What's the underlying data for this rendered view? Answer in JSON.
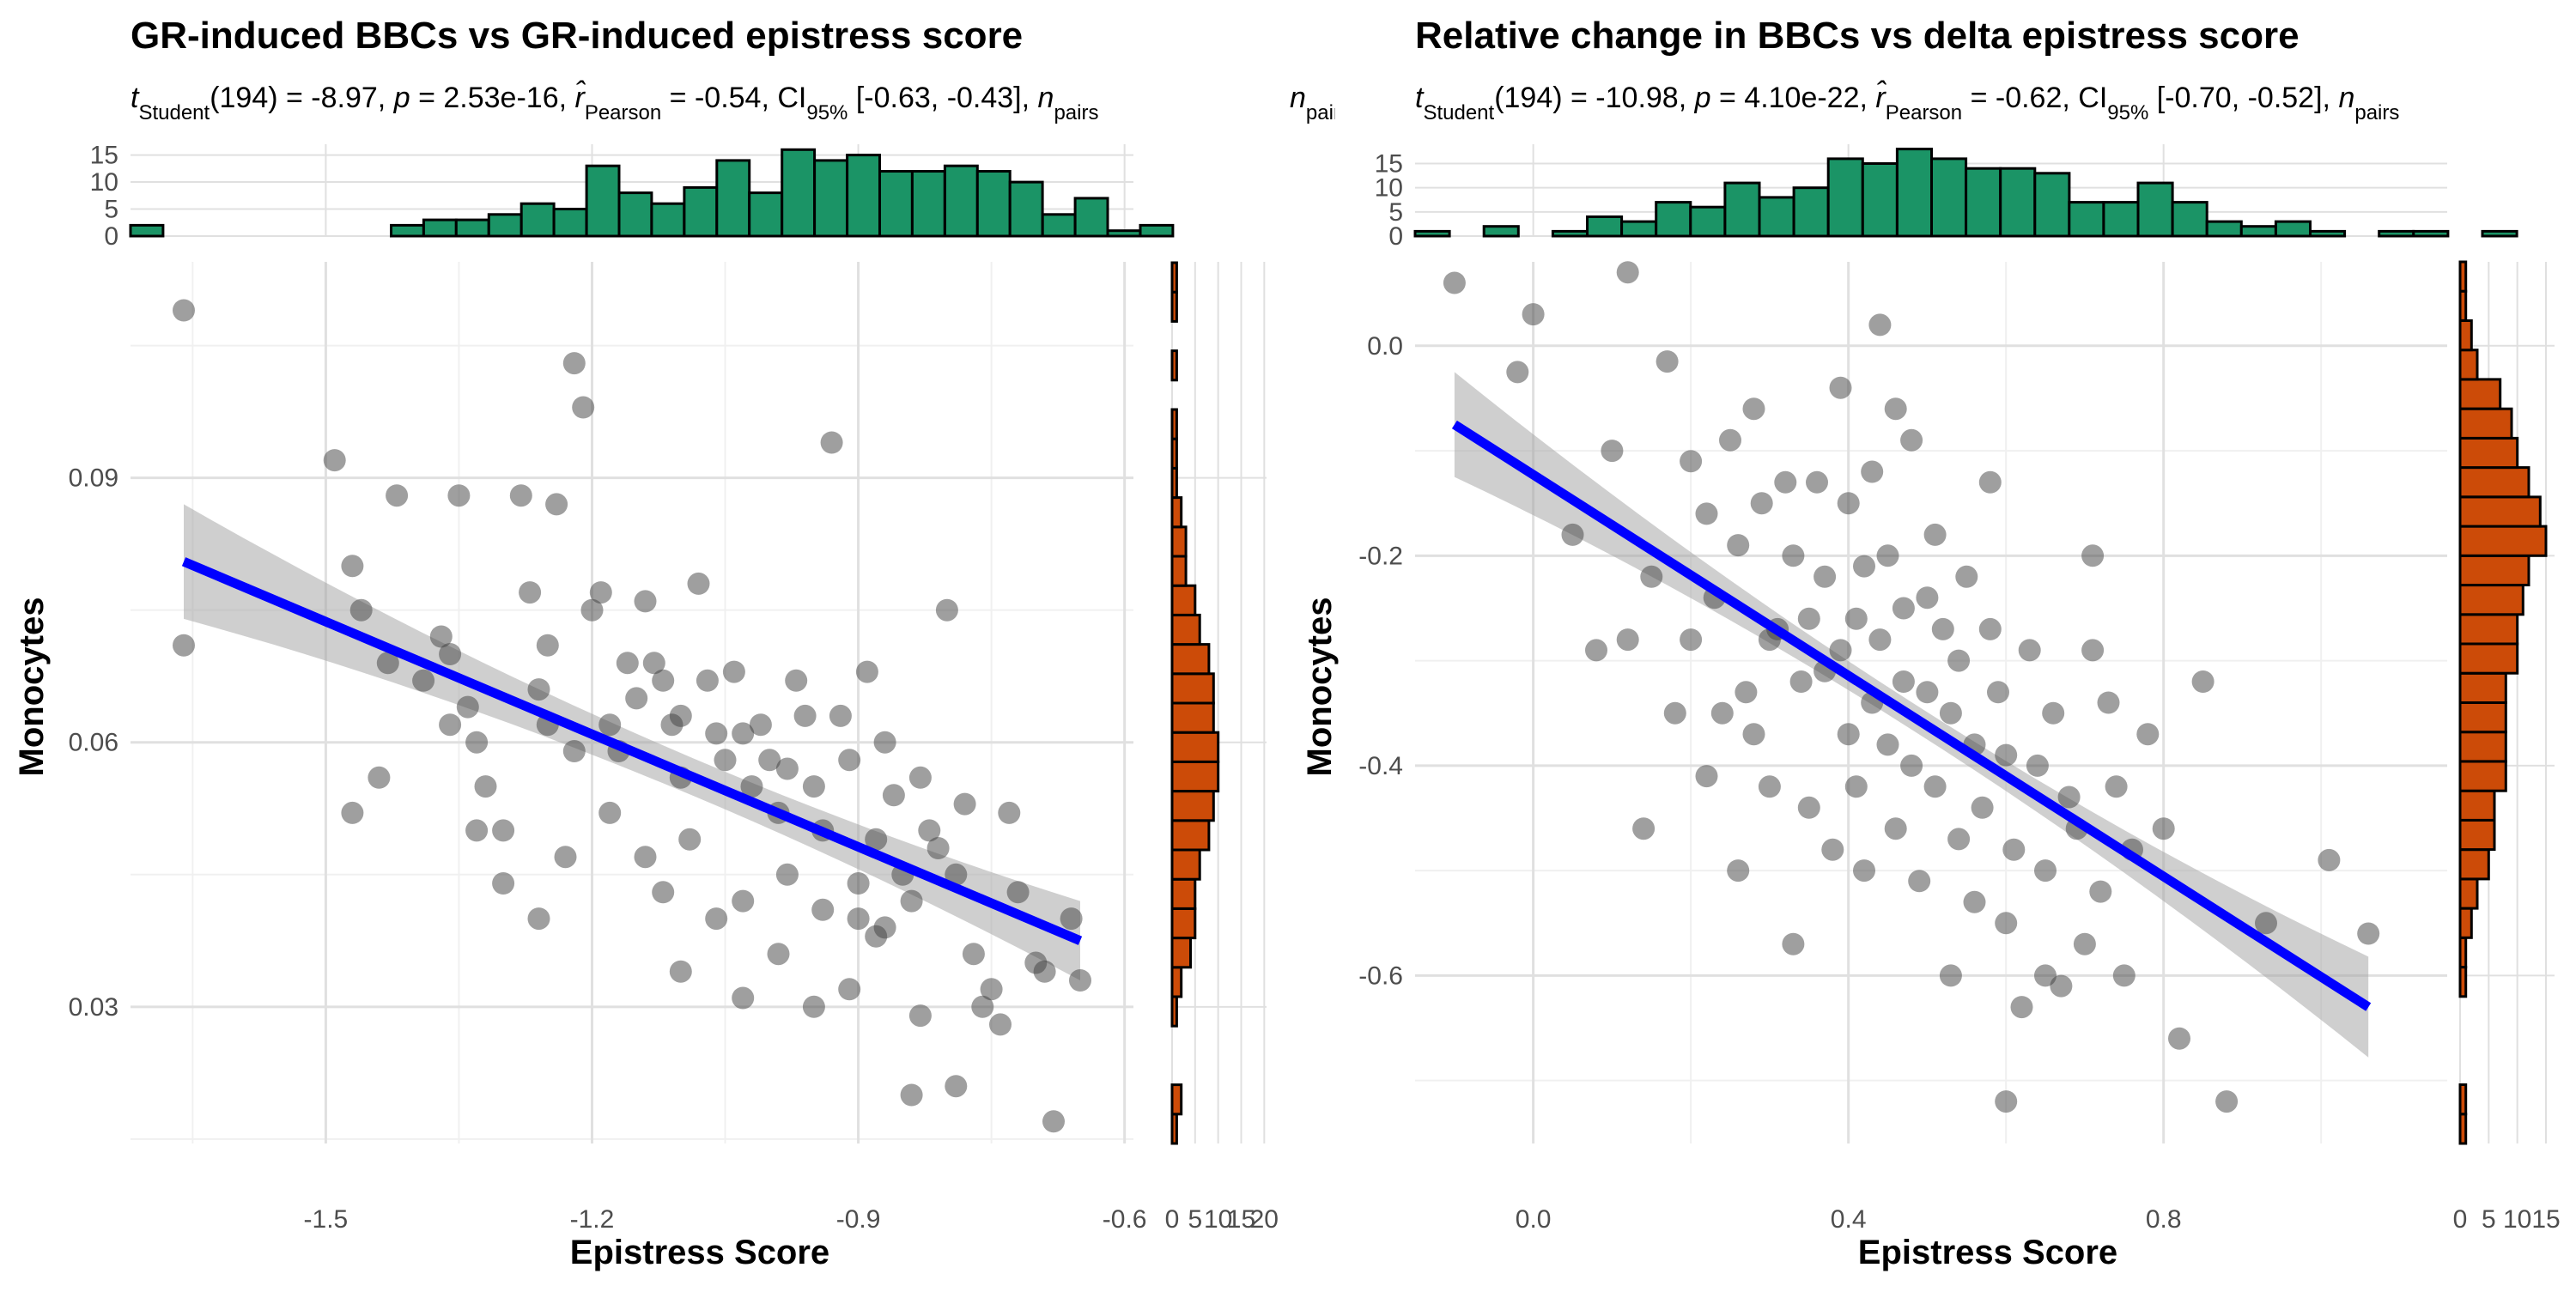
{
  "chart_data": [
    {
      "type": "scatter",
      "title": "GR-induced BBCs vs GR-induced epistress score",
      "subtitle": {
        "t_sub": "Student",
        "t_val": "(194) = -8.97, ",
        "p_val": " = 2.53e-16, ",
        "r_sub": "Pearson",
        "r_val": " = -0.54, CI",
        "ci_sub": "95%",
        "ci_val": " [-0.63, -0.43], ",
        "n_sub": "pairs"
      },
      "xlabel": "Epistress Score",
      "ylabel": "Monocytes",
      "xlim": [
        -1.72,
        -0.59
      ],
      "ylim": [
        0.0145,
        0.1145
      ],
      "xticks": [
        -1.5,
        -1.2,
        -0.9,
        -0.6
      ],
      "xtick_labels": [
        "-1.5",
        "-1.2",
        "-0.9",
        "-0.6"
      ],
      "yticks": [
        0.03,
        0.06,
        0.09
      ],
      "ytick_labels": [
        "0.03",
        "0.06",
        "0.09"
      ],
      "fit": {
        "x1": -1.66,
        "y1": 0.0805,
        "x2": -0.65,
        "y2": 0.0375,
        "ci_start": 0.0065,
        "ci_mid": 0.0022,
        "ci_end": 0.0045
      },
      "points": [
        [
          -1.66,
          0.109
        ],
        [
          -1.66,
          0.071
        ],
        [
          -1.49,
          0.092
        ],
        [
          -1.47,
          0.08
        ],
        [
          -1.46,
          0.075
        ],
        [
          -1.43,
          0.069
        ],
        [
          -1.42,
          0.088
        ],
        [
          -1.39,
          0.067
        ],
        [
          -1.37,
          0.072
        ],
        [
          -1.36,
          0.062
        ],
        [
          -1.36,
          0.07
        ],
        [
          -1.35,
          0.088
        ],
        [
          -1.34,
          0.064
        ],
        [
          -1.33,
          0.06
        ],
        [
          -1.32,
          0.055
        ],
        [
          -1.3,
          0.05
        ],
        [
          -1.28,
          0.088
        ],
        [
          -1.27,
          0.077
        ],
        [
          -1.26,
          0.066
        ],
        [
          -1.25,
          0.071
        ],
        [
          -1.25,
          0.062
        ],
        [
          -1.24,
          0.087
        ],
        [
          -1.22,
          0.103
        ],
        [
          -1.22,
          0.059
        ],
        [
          -1.21,
          0.098
        ],
        [
          -1.2,
          0.075
        ],
        [
          -1.19,
          0.077
        ],
        [
          -1.18,
          0.062
        ],
        [
          -1.17,
          0.059
        ],
        [
          -1.16,
          0.069
        ],
        [
          -1.15,
          0.065
        ],
        [
          -1.14,
          0.076
        ],
        [
          -1.13,
          0.069
        ],
        [
          -1.12,
          0.067
        ],
        [
          -1.11,
          0.062
        ],
        [
          -1.1,
          0.063
        ],
        [
          -1.1,
          0.056
        ],
        [
          -1.09,
          0.049
        ],
        [
          -1.08,
          0.078
        ],
        [
          -1.07,
          0.067
        ],
        [
          -1.06,
          0.061
        ],
        [
          -1.05,
          0.058
        ],
        [
          -1.04,
          0.068
        ],
        [
          -1.03,
          0.061
        ],
        [
          -1.02,
          0.055
        ],
        [
          -1.01,
          0.062
        ],
        [
          -1.0,
          0.058
        ],
        [
          -0.99,
          0.052
        ],
        [
          -0.98,
          0.057
        ],
        [
          -0.97,
          0.067
        ],
        [
          -0.96,
          0.063
        ],
        [
          -0.95,
          0.055
        ],
        [
          -0.94,
          0.05
        ],
        [
          -0.93,
          0.094
        ],
        [
          -0.92,
          0.063
        ],
        [
          -0.91,
          0.058
        ],
        [
          -0.9,
          0.044
        ],
        [
          -0.89,
          0.068
        ],
        [
          -0.88,
          0.049
        ],
        [
          -0.87,
          0.06
        ],
        [
          -0.86,
          0.054
        ],
        [
          -0.85,
          0.045
        ],
        [
          -0.84,
          0.042
        ],
        [
          -0.83,
          0.056
        ],
        [
          -0.82,
          0.05
        ],
        [
          -0.81,
          0.048
        ],
        [
          -0.8,
          0.075
        ],
        [
          -0.79,
          0.045
        ],
        [
          -0.78,
          0.053
        ],
        [
          -0.77,
          0.036
        ],
        [
          -0.76,
          0.03
        ],
        [
          -0.75,
          0.032
        ],
        [
          -0.74,
          0.028
        ],
        [
          -0.73,
          0.052
        ],
        [
          -0.72,
          0.043
        ],
        [
          -0.7,
          0.035
        ],
        [
          -0.69,
          0.034
        ],
        [
          -0.68,
          0.017
        ],
        [
          -0.66,
          0.04
        ],
        [
          -0.65,
          0.033
        ],
        [
          -1.44,
          0.056
        ],
        [
          -1.3,
          0.044
        ],
        [
          -1.26,
          0.04
        ],
        [
          -1.14,
          0.047
        ],
        [
          -1.1,
          0.034
        ],
        [
          -1.03,
          0.042
        ],
        [
          -0.98,
          0.045
        ],
        [
          -0.94,
          0.041
        ],
        [
          -0.91,
          0.032
        ],
        [
          -0.87,
          0.039
        ],
        [
          -0.84,
          0.02
        ],
        [
          -0.79,
          0.021
        ],
        [
          -1.03,
          0.031
        ],
        [
          -0.95,
          0.03
        ],
        [
          -0.88,
          0.038
        ],
        [
          -0.83,
          0.029
        ],
        [
          -1.47,
          0.052
        ],
        [
          -1.33,
          0.05
        ],
        [
          -1.23,
          0.047
        ],
        [
          -1.18,
          0.052
        ],
        [
          -1.12,
          0.043
        ],
        [
          -1.06,
          0.04
        ],
        [
          -0.99,
          0.036
        ],
        [
          -0.9,
          0.04
        ]
      ],
      "top_hist": {
        "x0": -1.72,
        "bin_w": 0.0367,
        "counts": [
          2,
          0,
          0,
          0,
          0,
          0,
          0,
          0,
          2,
          3,
          3,
          4,
          6,
          5,
          13,
          8,
          6,
          9,
          14,
          8,
          16,
          14,
          15,
          12,
          12,
          13,
          12,
          10,
          4,
          7,
          1,
          2
        ],
        "yticks": [
          0,
          5,
          10,
          15
        ],
        "ytick_labels": [
          "0",
          "5",
          "10",
          "15"
        ],
        "ymax": 17,
        "color": "#1b9466"
      },
      "right_hist": {
        "y0": 0.0145,
        "bin_h": 0.00333,
        "counts": [
          1,
          2,
          0,
          0,
          1,
          2,
          4,
          5,
          5,
          6,
          8,
          9,
          10,
          10,
          9,
          9,
          8,
          6,
          5,
          3,
          3,
          2,
          1,
          1,
          1,
          0,
          1,
          0,
          1,
          1
        ],
        "xticks": [
          0,
          5,
          10,
          15,
          20
        ],
        "xtick_labels": [
          "0",
          "5",
          "10",
          "15",
          "20"
        ],
        "xmax": 20.5,
        "color": "#cc4b08"
      },
      "colors": {
        "point": "#404040",
        "line": "#0000ff",
        "ribbon": "#a0a0a0"
      }
    },
    {
      "type": "scatter",
      "title": "Relative change in BBCs vs delta epistress score",
      "subtitle": {
        "t_sub": "Student",
        "t_val": "(194) = -10.98, ",
        "p_val": " = 4.10e-22, ",
        "r_sub": "Pearson",
        "r_val": " = -0.62, CI",
        "ci_sub": "95%",
        "ci_val": " [-0.70, -0.52], ",
        "n_sub": "pairs"
      },
      "xlabel": "Epistress Score",
      "ylabel": "Monocytes",
      "xlim": [
        -0.15,
        1.16
      ],
      "ylim": [
        -0.76,
        0.08
      ],
      "xticks": [
        0.0,
        0.4,
        0.8
      ],
      "xtick_labels": [
        "0.0",
        "0.4",
        "0.8"
      ],
      "yticks": [
        -0.6,
        -0.4,
        -0.2,
        0.0
      ],
      "ytick_labels": [
        "-0.6",
        "-0.4",
        "-0.2",
        "0.0"
      ],
      "fit": {
        "x1": -0.1,
        "y1": -0.075,
        "x2": 1.06,
        "y2": -0.63,
        "ci_start": 0.05,
        "ci_mid": 0.013,
        "ci_end": 0.048
      },
      "points": [
        [
          -0.1,
          0.06
        ],
        [
          -0.02,
          -0.025
        ],
        [
          0.0,
          0.03
        ],
        [
          0.05,
          -0.18
        ],
        [
          0.1,
          -0.1
        ],
        [
          0.12,
          0.07
        ],
        [
          0.15,
          -0.22
        ],
        [
          0.17,
          -0.015
        ],
        [
          0.18,
          -0.35
        ],
        [
          0.2,
          -0.11
        ],
        [
          0.2,
          -0.28
        ],
        [
          0.22,
          -0.16
        ],
        [
          0.23,
          -0.24
        ],
        [
          0.24,
          -0.35
        ],
        [
          0.25,
          -0.09
        ],
        [
          0.26,
          -0.19
        ],
        [
          0.27,
          -0.33
        ],
        [
          0.28,
          -0.06
        ],
        [
          0.28,
          -0.37
        ],
        [
          0.29,
          -0.15
        ],
        [
          0.3,
          -0.28
        ],
        [
          0.3,
          -0.42
        ],
        [
          0.31,
          -0.27
        ],
        [
          0.32,
          -0.13
        ],
        [
          0.33,
          -0.2
        ],
        [
          0.34,
          -0.32
        ],
        [
          0.35,
          -0.26
        ],
        [
          0.35,
          -0.44
        ],
        [
          0.36,
          -0.13
        ],
        [
          0.37,
          -0.22
        ],
        [
          0.37,
          -0.31
        ],
        [
          0.38,
          -0.48
        ],
        [
          0.39,
          -0.04
        ],
        [
          0.39,
          -0.29
        ],
        [
          0.4,
          -0.15
        ],
        [
          0.4,
          -0.37
        ],
        [
          0.41,
          -0.26
        ],
        [
          0.41,
          -0.42
        ],
        [
          0.42,
          -0.21
        ],
        [
          0.42,
          -0.5
        ],
        [
          0.43,
          -0.12
        ],
        [
          0.43,
          -0.34
        ],
        [
          0.44,
          0.02
        ],
        [
          0.44,
          -0.28
        ],
        [
          0.45,
          -0.2
        ],
        [
          0.45,
          -0.38
        ],
        [
          0.46,
          -0.06
        ],
        [
          0.46,
          -0.46
        ],
        [
          0.47,
          -0.25
        ],
        [
          0.47,
          -0.32
        ],
        [
          0.48,
          -0.09
        ],
        [
          0.48,
          -0.4
        ],
        [
          0.49,
          -0.51
        ],
        [
          0.5,
          -0.24
        ],
        [
          0.5,
          -0.33
        ],
        [
          0.51,
          -0.18
        ],
        [
          0.51,
          -0.42
        ],
        [
          0.52,
          -0.27
        ],
        [
          0.53,
          -0.35
        ],
        [
          0.53,
          -0.6
        ],
        [
          0.54,
          -0.3
        ],
        [
          0.54,
          -0.47
        ],
        [
          0.55,
          -0.22
        ],
        [
          0.56,
          -0.38
        ],
        [
          0.56,
          -0.53
        ],
        [
          0.57,
          -0.44
        ],
        [
          0.58,
          -0.27
        ],
        [
          0.58,
          -0.13
        ],
        [
          0.59,
          -0.33
        ],
        [
          0.6,
          -0.55
        ],
        [
          0.6,
          -0.39
        ],
        [
          0.61,
          -0.48
        ],
        [
          0.62,
          -0.63
        ],
        [
          0.63,
          -0.29
        ],
        [
          0.64,
          -0.4
        ],
        [
          0.65,
          -0.5
        ],
        [
          0.66,
          -0.35
        ],
        [
          0.67,
          -0.61
        ],
        [
          0.68,
          -0.43
        ],
        [
          0.69,
          -0.46
        ],
        [
          0.7,
          -0.57
        ],
        [
          0.71,
          -0.29
        ],
        [
          0.71,
          -0.2
        ],
        [
          0.72,
          -0.52
        ],
        [
          0.73,
          -0.34
        ],
        [
          0.74,
          -0.42
        ],
        [
          0.75,
          -0.6
        ],
        [
          0.76,
          -0.48
        ],
        [
          0.78,
          -0.37
        ],
        [
          0.8,
          -0.46
        ],
        [
          0.82,
          -0.66
        ],
        [
          0.85,
          -0.32
        ],
        [
          0.88,
          -0.72
        ],
        [
          0.93,
          -0.55
        ],
        [
          1.01,
          -0.49
        ],
        [
          1.06,
          -0.56
        ],
        [
          0.12,
          -0.28
        ],
        [
          0.08,
          -0.29
        ],
        [
          0.14,
          -0.46
        ],
        [
          0.22,
          -0.41
        ],
        [
          0.26,
          -0.5
        ],
        [
          0.33,
          -0.57
        ],
        [
          0.6,
          -0.72
        ],
        [
          0.65,
          -0.6
        ]
      ],
      "top_hist": {
        "x0": -0.15,
        "bin_w": 0.0437,
        "counts": [
          1,
          0,
          2,
          0,
          1,
          4,
          3,
          7,
          6,
          11,
          8,
          10,
          16,
          15,
          18,
          16,
          14,
          14,
          13,
          7,
          7,
          11,
          7,
          3,
          2,
          3,
          1,
          0,
          1,
          1,
          0,
          1
        ],
        "yticks": [
          0,
          5,
          10,
          15
        ],
        "ytick_labels": [
          "0",
          "5",
          "10",
          "15"
        ],
        "ymax": 19,
        "color": "#1b9466"
      },
      "right_hist": {
        "y0": -0.76,
        "bin_h": 0.028,
        "counts": [
          1,
          1,
          0,
          0,
          0,
          1,
          1,
          2,
          3,
          5,
          6,
          6,
          8,
          8,
          8,
          8,
          10,
          10,
          11,
          12,
          15,
          14,
          12,
          10,
          9,
          7,
          3,
          2,
          1,
          1
        ],
        "xticks": [
          0,
          5,
          10,
          15
        ],
        "xtick_labels": [
          "0",
          "5",
          "10",
          "15"
        ],
        "xmax": 16.5,
        "color": "#cc4b08"
      },
      "colors": {
        "point": "#404040",
        "line": "#0000ff",
        "ribbon": "#a0a0a0"
      }
    }
  ]
}
